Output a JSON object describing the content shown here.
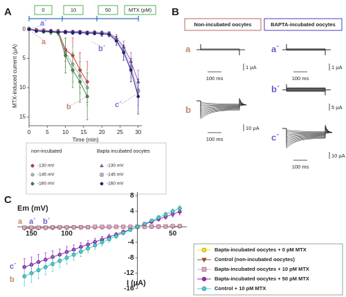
{
  "panel_labels": [
    "A",
    "B",
    "C"
  ],
  "chart_data": [
    {
      "type": "line",
      "x_label": "Time (min)",
      "y_label": "MTX-induced current (µA)",
      "xlim": [
        0,
        31
      ],
      "xticks": [
        0,
        5,
        10,
        15,
        20,
        25,
        30
      ],
      "ylim": [
        -0.5,
        16.5
      ],
      "yticks": [
        0,
        5,
        10,
        15
      ],
      "y_inverted": true,
      "mtx_boxes": [
        "0",
        "10",
        "50",
        "MTX (pM)"
      ],
      "legend_groups": [
        "non-incubated",
        "Bapta incubated oocytes"
      ],
      "annotations": [
        {
          "text": "a´",
          "color": "#7b68ee"
        },
        {
          "text": "a",
          "color": "#c8826a"
        },
        {
          "text": "b´",
          "color": "#7b68ee"
        },
        {
          "text": "c´",
          "color": "#7b68ee"
        },
        {
          "text": "b",
          "color": "#c8826a"
        }
      ],
      "series": [
        {
          "name": "-130 mV",
          "color": "#e8262a",
          "marker": "circle",
          "x": [
            0,
            2,
            4,
            6,
            8,
            10,
            12,
            14,
            16
          ],
          "values": [
            0,
            0.1,
            0.2,
            0.3,
            0.4,
            3.5,
            4.5,
            7,
            9
          ],
          "errors": [
            0,
            0.2,
            0.3,
            0.3,
            0.4,
            2,
            3,
            3,
            3.5
          ]
        },
        {
          "name": "-145 mV",
          "color": "#a9b4c0",
          "marker": "circle",
          "x": [
            0,
            2,
            4,
            6,
            8,
            10,
            12,
            14,
            16
          ],
          "values": [
            0,
            0.2,
            0.3,
            0.4,
            0.5,
            4,
            6,
            8,
            10
          ],
          "errors": [
            0,
            0.2,
            0.3,
            0.3,
            0.4,
            2.5,
            3,
            3,
            3
          ]
        },
        {
          "name": "-160 mV",
          "color": "#3a8a3a",
          "marker": "circle",
          "x": [
            0,
            2,
            4,
            6,
            8,
            10,
            12,
            14,
            16
          ],
          "values": [
            0,
            0.3,
            0.4,
            0.5,
            0.6,
            4.5,
            7,
            9,
            11.5
          ],
          "errors": [
            0,
            0.3,
            0.3,
            0.4,
            0.5,
            3,
            3,
            3.5,
            4
          ]
        },
        {
          "name": "-130 mV",
          "color": "#9b59b6",
          "marker": "triangle",
          "x": [
            0,
            2,
            4,
            6,
            8,
            10,
            12,
            14,
            16,
            18,
            20,
            22,
            24,
            26,
            28,
            30
          ],
          "values": [
            0,
            0.2,
            0.3,
            0.3,
            0.4,
            0.4,
            0.4,
            0.4,
            0.5,
            0.5,
            0.6,
            0.7,
            1.5,
            3,
            5.5,
            9
          ],
          "errors": [
            0,
            0.1,
            0.2,
            0.2,
            0.2,
            0.2,
            0.2,
            0.2,
            0.2,
            0.3,
            0.3,
            0.3,
            0.6,
            1,
            1.5,
            2
          ]
        },
        {
          "name": "-145 mV",
          "color": "#c9a0dc",
          "marker": "square",
          "x": [
            0,
            2,
            4,
            6,
            8,
            10,
            12,
            14,
            16,
            18,
            20,
            22,
            24,
            26,
            28,
            30
          ],
          "values": [
            0,
            0.2,
            0.3,
            0.4,
            0.4,
            0.5,
            0.5,
            0.5,
            0.6,
            0.6,
            0.7,
            0.8,
            1.8,
            3.5,
            6.5,
            10.5
          ],
          "errors": [
            0,
            0.1,
            0.2,
            0.2,
            0.2,
            0.2,
            0.2,
            0.3,
            0.3,
            0.3,
            0.3,
            0.4,
            0.7,
            1.2,
            1.8,
            2.5
          ]
        },
        {
          "name": "-160 mV",
          "color": "#1a237e",
          "marker": "circle",
          "x": [
            0,
            2,
            4,
            6,
            8,
            10,
            12,
            14,
            16,
            18,
            20,
            22,
            24,
            26,
            28,
            30
          ],
          "values": [
            0,
            0.3,
            0.4,
            0.4,
            0.5,
            0.5,
            0.6,
            0.6,
            0.7,
            0.7,
            0.8,
            0.9,
            2,
            4,
            7,
            11.5
          ],
          "errors": [
            0,
            0.1,
            0.2,
            0.2,
            0.2,
            0.3,
            0.3,
            0.3,
            0.3,
            0.3,
            0.4,
            0.4,
            0.8,
            1.3,
            2,
            3
          ]
        }
      ]
    },
    {
      "type": "line",
      "x_label": "Em (mV)",
      "y_label": "I (µA)",
      "axes_through_origin": true,
      "x": [
        -160,
        -150,
        -140,
        -130,
        -120,
        -110,
        -100,
        -90,
        -80,
        -70,
        -60,
        -50,
        -40,
        -30,
        -20,
        -10,
        0,
        10,
        20,
        30,
        40,
        50,
        60
      ],
      "xlim": [
        -170,
        70
      ],
      "xticks": [
        {
          "value": -150,
          "label": "150"
        },
        {
          "value": -100,
          "label": "100"
        },
        50
      ],
      "ylim": [
        -16,
        9
      ],
      "yticks": [
        8,
        4,
        -4,
        -8,
        -12,
        -16
      ],
      "annotations": [
        {
          "text": "a",
          "color": "#c8826a"
        },
        {
          "text": "a´",
          "color": "#6a5acd"
        },
        {
          "text": "b´",
          "color": "#6a5acd"
        },
        {
          "text": "c´",
          "color": "#6a5acd"
        },
        {
          "text": "b",
          "color": "#c8826a"
        }
      ],
      "series": [
        {
          "name": "Bapta-incubated oocytes + 0 pM MTX",
          "color": "#ffe600",
          "marker": "hexagon",
          "values": [
            -0.3,
            -0.3,
            -0.3,
            -0.2,
            -0.2,
            -0.2,
            -0.2,
            -0.1,
            -0.1,
            -0.1,
            -0.1,
            -0.1,
            0,
            0,
            0,
            0,
            0,
            0,
            0.1,
            0.1,
            0.1,
            0.1,
            0.2
          ]
        },
        {
          "name": "Control (non-incubated oocytes)",
          "color": "#a0522d",
          "marker": "triangle-down",
          "values": [
            -0.4,
            -0.4,
            -0.3,
            -0.3,
            -0.3,
            -0.2,
            -0.2,
            -0.2,
            -0.2,
            -0.1,
            -0.1,
            -0.1,
            -0.1,
            0,
            0,
            0,
            0,
            0,
            0,
            0,
            0.1,
            0.1,
            0.1
          ]
        },
        {
          "name": "Bapta-incubated oocytes + 10 pM MTX",
          "color": "#e8a0c8",
          "marker": "square",
          "values": [
            -0.2,
            -0.2,
            -0.2,
            -0.2,
            -0.1,
            -0.1,
            -0.1,
            -0.1,
            -0.1,
            -0.1,
            0,
            0,
            0,
            0,
            0,
            0,
            0,
            0,
            0.1,
            0.1,
            0.1,
            0.2,
            0.2
          ]
        },
        {
          "name": "Bapta-incubated oocytes + 50 pM MTX",
          "color": "#a020c0",
          "marker": "circle",
          "values": [
            -10.4,
            -9.8,
            -9.1,
            -8.5,
            -7.8,
            -7.2,
            -6.5,
            -5.9,
            -5.2,
            -4.6,
            -3.9,
            -3.3,
            -2.6,
            -2,
            -1.3,
            -0.7,
            0,
            0.7,
            1.3,
            2,
            2.6,
            3.3,
            3.9
          ],
          "errors": [
            2.2,
            2,
            1.9,
            1.8,
            1.6,
            1.5,
            1.4,
            1.2,
            1.1,
            1,
            0.9,
            0.8,
            0.7,
            0.5,
            0.4,
            0.3,
            0,
            0.3,
            0.4,
            0.5,
            0.6,
            0.7,
            0.8
          ]
        },
        {
          "name": "Control + 10 pM MTX",
          "color": "#40d0d0",
          "marker": "hexagon",
          "values": [
            -12.8,
            -12,
            -11.2,
            -10.4,
            -9.6,
            -8.8,
            -8,
            -7.2,
            -6.4,
            -5.6,
            -4.8,
            -4,
            -3.2,
            -2.4,
            -1.6,
            -0.8,
            0,
            0.8,
            1.6,
            2.4,
            3.2,
            4,
            4.8
          ],
          "errors": [
            2.5,
            2.3,
            2.2,
            2,
            1.9,
            1.7,
            1.6,
            1.4,
            1.3,
            1.1,
            1,
            0.9,
            0.8,
            0.6,
            0.5,
            0.4,
            0,
            0.3,
            0.4,
            0.5,
            0.6,
            0.7,
            0.8
          ]
        }
      ]
    }
  ],
  "panel_b": {
    "headers": [
      "Non-incubated oocytes",
      "BAPTA-incubated oocytes"
    ],
    "traces": [
      {
        "label": "a",
        "scale_current": "1 µA",
        "scale_time": "100 ms"
      },
      {
        "label": "b",
        "scale_current": "10 µA",
        "scale_time": "100 ms"
      },
      {
        "label": "a´",
        "scale_current": "1 µA",
        "scale_time": "100 ms"
      },
      {
        "label": "b´",
        "scale_current": "5 µA"
      },
      {
        "label": "c´",
        "scale_current": "10 µA",
        "scale_time": "100 ms"
      }
    ]
  }
}
